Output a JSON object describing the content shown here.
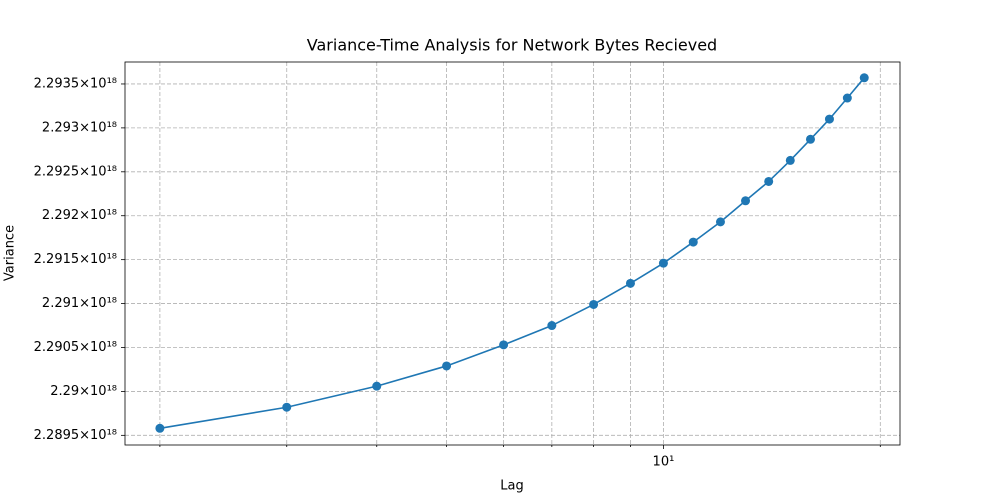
{
  "chart_data": {
    "type": "line",
    "title": "Variance-Time Analysis for Network Bytes Recieved",
    "xlabel": "Lag",
    "ylabel": "Variance",
    "xscale": "log",
    "x": [
      2,
      3,
      4,
      5,
      6,
      7,
      8,
      9,
      10,
      11,
      12,
      13,
      14,
      15,
      16,
      17,
      18,
      19
    ],
    "series": [
      {
        "name": "Variance",
        "color": "#1f77b4",
        "values": [
          2.28958e+18,
          2.28982e+18,
          2.29006e+18,
          2.29029e+18,
          2.29053e+18,
          2.29075e+18,
          2.29099e+18,
          2.29123e+18,
          2.29146e+18,
          2.2917e+18,
          2.29193e+18,
          2.29217e+18,
          2.29239e+18,
          2.29263e+18,
          2.29287e+18,
          2.2931e+18,
          2.29334e+18,
          2.29357e+18
        ]
      }
    ],
    "xlim": [
      1.789,
      21.3
    ],
    "xticks": [
      {
        "value": 10,
        "label": "10¹"
      }
    ],
    "xminorticks": [
      2,
      3,
      4,
      5,
      6,
      7,
      8,
      9,
      20
    ],
    "ylim": [
      2.28939e+18,
      2.29375e+18
    ],
    "yticks": [
      {
        "value": 2.2895e+18,
        "label": "2.2895×10¹⁸"
      },
      {
        "value": 2.29e+18,
        "label": "2.29×10¹⁸"
      },
      {
        "value": 2.2905e+18,
        "label": "2.2905×10¹⁸"
      },
      {
        "value": 2.291e+18,
        "label": "2.291×10¹⁸"
      },
      {
        "value": 2.2915e+18,
        "label": "2.2915×10¹⁸"
      },
      {
        "value": 2.292e+18,
        "label": "2.292×10¹⁸"
      },
      {
        "value": 2.2925e+18,
        "label": "2.2925×10¹⁸"
      },
      {
        "value": 2.293e+18,
        "label": "2.293×10¹⁸"
      },
      {
        "value": 2.2935e+18,
        "label": "2.2935×10¹⁸"
      }
    ],
    "grid": true
  }
}
